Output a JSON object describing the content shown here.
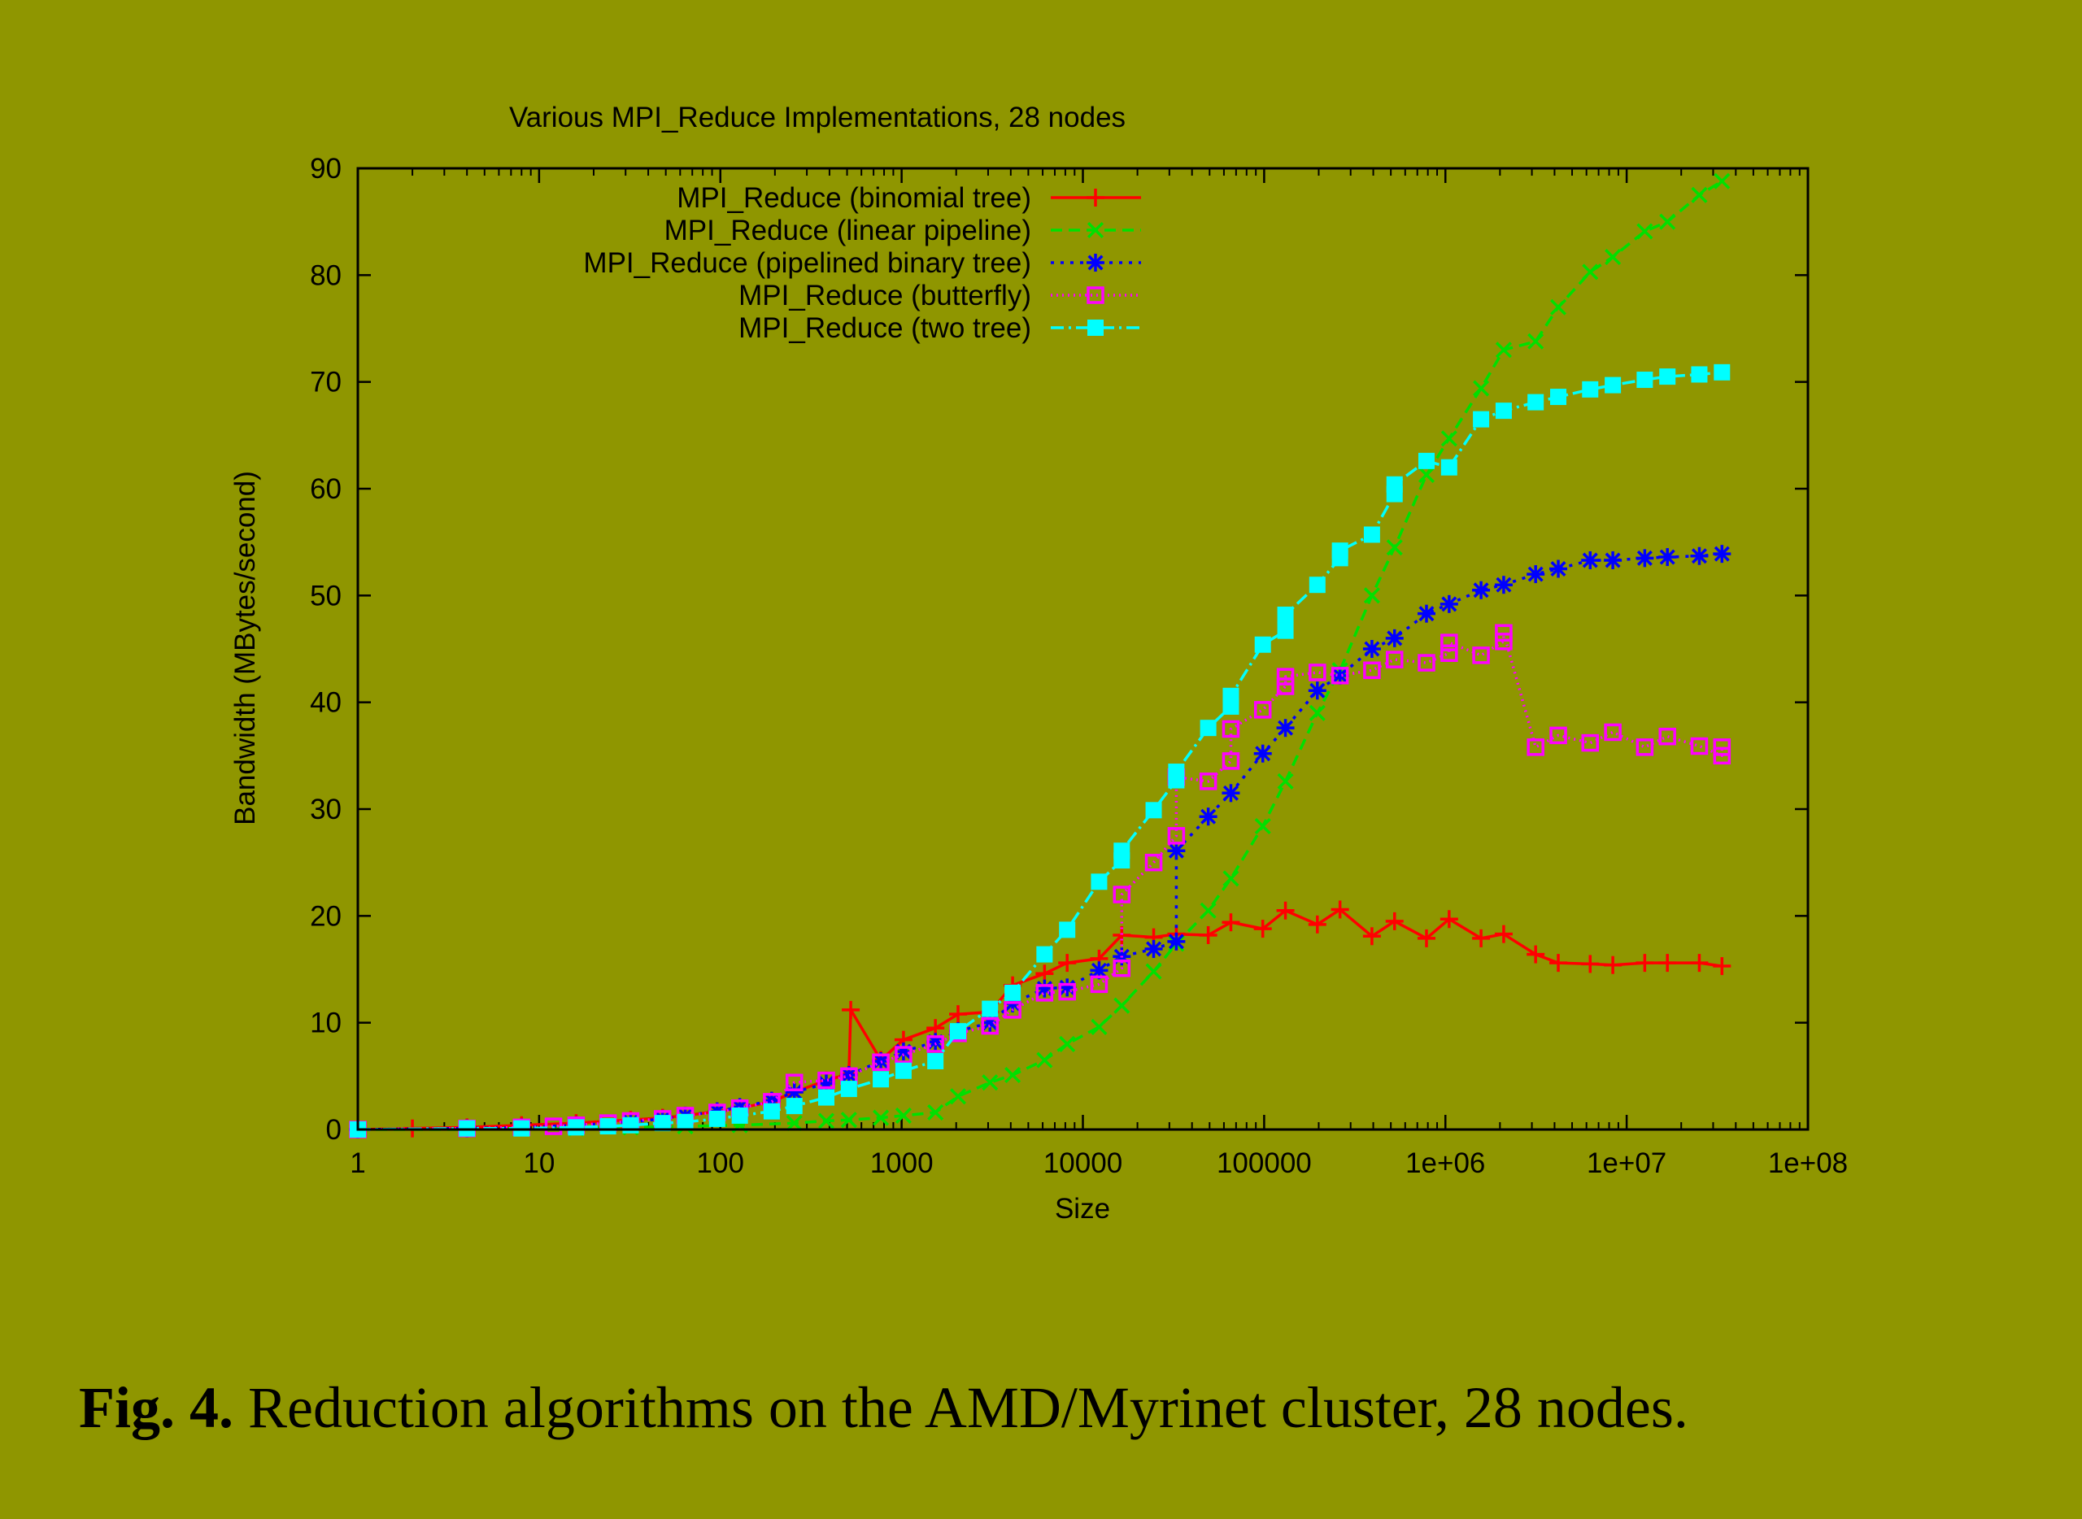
{
  "caption": {
    "label": "Fig. 4.",
    "text": "Reduction algorithms on the AMD/Myrinet cluster, 28 nodes."
  },
  "chart_data": {
    "type": "line",
    "title": "Various MPI_Reduce Implementations, 28 nodes",
    "xlabel": "Size",
    "ylabel": "Bandwidth (MBytes/second)",
    "xscale": "log",
    "xlim": [
      1,
      100000000
    ],
    "ylim": [
      0,
      90
    ],
    "xticks": [
      1,
      10,
      100,
      1000,
      10000,
      100000,
      1000000,
      10000000,
      100000000
    ],
    "xtick_labels": [
      "1",
      "10",
      "100",
      "1000",
      "10000",
      "100000",
      "1e+06",
      "1e+07",
      "1e+08"
    ],
    "yticks": [
      0,
      10,
      20,
      30,
      40,
      50,
      60,
      70,
      80,
      90
    ],
    "grid": false,
    "legend": "top-left",
    "series": [
      {
        "name": "MPI_Reduce (binomial tree)",
        "color": "#ff0000",
        "marker": "plus",
        "dash": "solid",
        "x": [
          1,
          2,
          4,
          8,
          16,
          32,
          48,
          64,
          96,
          128,
          192,
          256,
          384,
          512,
          524,
          768,
          1024,
          1536,
          2048,
          3072,
          4096,
          6144,
          8192,
          12288,
          16384,
          24576,
          32768,
          49152,
          65536,
          98304,
          131072,
          196608,
          262144,
          393216,
          524288,
          786432,
          1048576,
          1572864,
          2097152,
          3145728,
          4194304,
          6291456,
          8388608,
          12582912,
          16777216,
          25165824,
          33554432
        ],
        "y": [
          0.0,
          0.1,
          0.2,
          0.4,
          0.6,
          0.9,
          1.1,
          1.3,
          1.7,
          2.0,
          2.6,
          3.5,
          4.6,
          5.2,
          11.2,
          6.5,
          8.4,
          9.5,
          10.8,
          11.0,
          13.5,
          14.6,
          15.6,
          16.0,
          18.2,
          18.0,
          18.3,
          18.2,
          19.4,
          18.8,
          20.5,
          19.2,
          20.6,
          18.1,
          19.5,
          17.9,
          19.7,
          17.9,
          18.3,
          16.4,
          15.6,
          15.5,
          15.4,
          15.6,
          15.6,
          15.6,
          15.3
        ]
      },
      {
        "name": "MPI_Reduce (linear pipeline)",
        "color": "#00e000",
        "marker": "cross",
        "dash": "dashed",
        "x": [
          1,
          4,
          8,
          16,
          32,
          64,
          128,
          256,
          384,
          512,
          768,
          1024,
          1536,
          2048,
          3072,
          4096,
          6144,
          8192,
          12288,
          16384,
          24576,
          32768,
          49152,
          65536,
          98304,
          131072,
          196608,
          262144,
          393216,
          524288,
          786432,
          1048576,
          1572864,
          2097152,
          3145728,
          4194304,
          6291456,
          8388608,
          12582912,
          16777216,
          25165824,
          33554432
        ],
        "y": [
          0.0,
          0.0,
          0.1,
          0.1,
          0.2,
          0.3,
          0.4,
          0.6,
          0.8,
          0.9,
          1.1,
          1.3,
          1.6,
          3.1,
          4.4,
          5.1,
          6.5,
          8.0,
          9.6,
          11.6,
          14.8,
          17.4,
          20.5,
          23.5,
          28.4,
          32.6,
          39.0,
          43.0,
          50.0,
          54.5,
          61.3,
          64.7,
          69.4,
          73.0,
          73.8,
          77.0,
          80.3,
          81.7,
          84.1,
          85.0,
          87.5,
          88.8
        ]
      },
      {
        "name": "MPI_Reduce (pipelined binary tree)",
        "color": "#0000ff",
        "marker": "star",
        "dash": "dotted",
        "x": [
          1,
          4,
          8,
          16,
          32,
          48,
          64,
          96,
          128,
          192,
          256,
          384,
          512,
          768,
          1024,
          1536,
          2048,
          3072,
          4096,
          6144,
          8192,
          12288,
          16384,
          24576,
          32768,
          32769,
          49152,
          65536,
          98304,
          131072,
          196608,
          262144,
          393216,
          524288,
          786432,
          1048576,
          1572864,
          2097152,
          3145728,
          4194304,
          6291456,
          8388608,
          12582912,
          16777216,
          25165824,
          33554432
        ],
        "y": [
          0.0,
          0.1,
          0.2,
          0.4,
          0.7,
          1.0,
          1.3,
          1.7,
          2.1,
          2.7,
          3.5,
          4.3,
          5.1,
          6.4,
          7.3,
          8.2,
          9.2,
          10.0,
          11.8,
          13.2,
          13.3,
          14.9,
          16.2,
          16.9,
          17.6,
          26.1,
          29.3,
          31.5,
          35.2,
          37.6,
          41.1,
          42.5,
          45.0,
          46.0,
          48.3,
          49.2,
          50.5,
          51.0,
          52.0,
          52.5,
          53.3,
          53.3,
          53.5,
          53.6,
          53.7,
          53.9
        ]
      },
      {
        "name": "MPI_Reduce (butterfly)",
        "color": "#ff00ff",
        "marker": "square-open",
        "dash": "dotted-fine",
        "x": [
          1,
          4,
          8,
          12,
          16,
          24,
          32,
          48,
          64,
          96,
          128,
          192,
          256,
          384,
          512,
          768,
          1024,
          1536,
          2048,
          3072,
          4096,
          6144,
          8192,
          12288,
          16384,
          16385,
          24576,
          32768,
          32769,
          49152,
          65536,
          65537,
          98304,
          131072,
          131073,
          196608,
          262144,
          393216,
          524288,
          786432,
          1048576,
          1048577,
          1572864,
          2097152,
          2097153,
          3145728,
          4194304,
          6291456,
          8388608,
          12582912,
          16777216,
          25165824,
          33554432,
          33554433
        ],
        "y": [
          0.0,
          0.1,
          0.2,
          0.3,
          0.4,
          0.6,
          0.8,
          1.0,
          1.3,
          1.6,
          2.0,
          2.6,
          4.4,
          4.6,
          5.0,
          6.3,
          7.0,
          8.0,
          9.0,
          9.7,
          11.2,
          12.8,
          12.9,
          13.6,
          15.1,
          22.0,
          25.0,
          27.5,
          33.0,
          32.6,
          34.5,
          37.5,
          39.3,
          41.5,
          42.4,
          42.8,
          42.5,
          43.0,
          44.0,
          43.7,
          44.6,
          45.6,
          44.4,
          45.7,
          46.5,
          35.8,
          36.9,
          36.2,
          37.2,
          35.8,
          36.8,
          35.9,
          35.0,
          35.8
        ]
      },
      {
        "name": "MPI_Reduce (two tree)",
        "color": "#00ffff",
        "marker": "square-filled",
        "dash": "dashdot",
        "x": [
          1,
          4,
          8,
          16,
          24,
          32,
          48,
          64,
          96,
          128,
          192,
          256,
          384,
          512,
          768,
          1024,
          1536,
          2048,
          3072,
          4096,
          6144,
          8192,
          12288,
          16384,
          16385,
          24576,
          32768,
          32769,
          49152,
          65536,
          65537,
          98304,
          131072,
          131073,
          196608,
          262144,
          262145,
          393216,
          524288,
          524289,
          786432,
          1048576,
          1572864,
          2097152,
          3145728,
          4194304,
          6291456,
          8388608,
          12582912,
          16777216,
          25165824,
          33554432
        ],
        "y": [
          0.0,
          0.1,
          0.1,
          0.2,
          0.3,
          0.4,
          0.6,
          0.7,
          1.0,
          1.3,
          1.7,
          2.2,
          3.0,
          3.8,
          4.7,
          5.5,
          6.4,
          9.2,
          11.3,
          12.8,
          16.4,
          18.7,
          23.2,
          25.2,
          26.1,
          29.9,
          32.7,
          33.5,
          37.6,
          39.6,
          40.6,
          45.4,
          46.7,
          48.2,
          51.0,
          53.5,
          54.2,
          55.7,
          59.5,
          60.4,
          62.6,
          62.0,
          66.5,
          67.3,
          68.1,
          68.6,
          69.3,
          69.7,
          70.2,
          70.5,
          70.7,
          70.9
        ]
      }
    ]
  }
}
